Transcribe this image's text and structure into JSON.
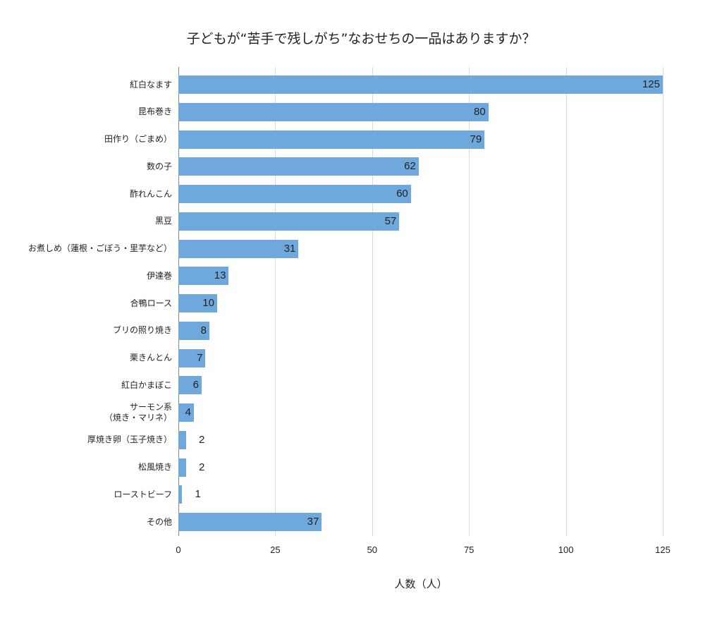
{
  "chart_data": {
    "type": "bar",
    "orientation": "horizontal",
    "title": "子どもが“苦手で残しがち”なおせちの一品はありますか？",
    "xlabel": "人数（人）",
    "ylabel": "",
    "xlim": [
      0,
      125
    ],
    "xticks": [
      "0",
      "25",
      "50",
      "75",
      "100",
      "125"
    ],
    "grid": true,
    "bar_color": "#6fa8dc",
    "categories": [
      "紅白なます",
      "昆布巻き",
      "田作り（ごまめ）",
      "数の子",
      "酢れんこん",
      "黒豆",
      "お煮しめ（蓮根・ごぼう・里芋など）",
      "伊達巻",
      "合鴨ロース",
      "ブリの照り焼き",
      "栗きんとん",
      "紅白かまぼこ",
      "サーモン系\n（焼き・マリネ）",
      "厚焼き卵（玉子焼き）",
      "松風焼き",
      "ローストビーフ",
      "その他"
    ],
    "values": [
      125,
      80,
      79,
      62,
      60,
      57,
      31,
      13,
      10,
      8,
      7,
      6,
      4,
      2,
      2,
      1,
      37
    ]
  }
}
